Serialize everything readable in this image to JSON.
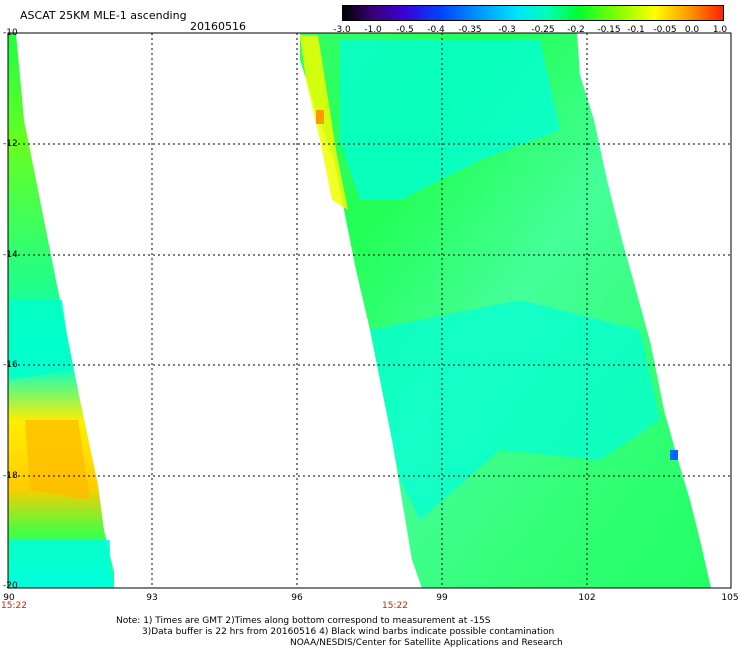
{
  "header": {
    "title": "ASCAT 25KM MLE-1 ascending",
    "date": "20160516"
  },
  "colorbar": {
    "labels": [
      "-3.0",
      "-1.0",
      "-0.5",
      "-0.4",
      "-0.35",
      "-0.3",
      "-0.25",
      "-0.2",
      "-0.15",
      "-0.1",
      "-0.05",
      "0.0",
      "1.0"
    ]
  },
  "map": {
    "lon_range": [
      90,
      105
    ],
    "lat_range": [
      -10,
      -20
    ],
    "x_ticks": [
      "90",
      "93",
      "96",
      "99",
      "102",
      "105"
    ],
    "y_ticks": [
      "-10",
      "-12",
      "-14",
      "-16",
      "-18",
      "-20"
    ],
    "pass_times": [
      "15:22",
      "15:22"
    ],
    "colors": {
      "low": "#00ffff",
      "mid": "#00ff44",
      "high": "#ffff00",
      "peak": "#ff9900",
      "grid": "#000000"
    }
  },
  "notes": {
    "line1": "Note: 1) Times are GMT 2)Times along bottom correspond to measurement at -15S",
    "line2": "3)Data buffer is 22 hrs from 20160516 4) Black wind barbs indicate possible contamination",
    "line3": "NOAA/NESDIS/Center for Satellite Applications and Research"
  }
}
